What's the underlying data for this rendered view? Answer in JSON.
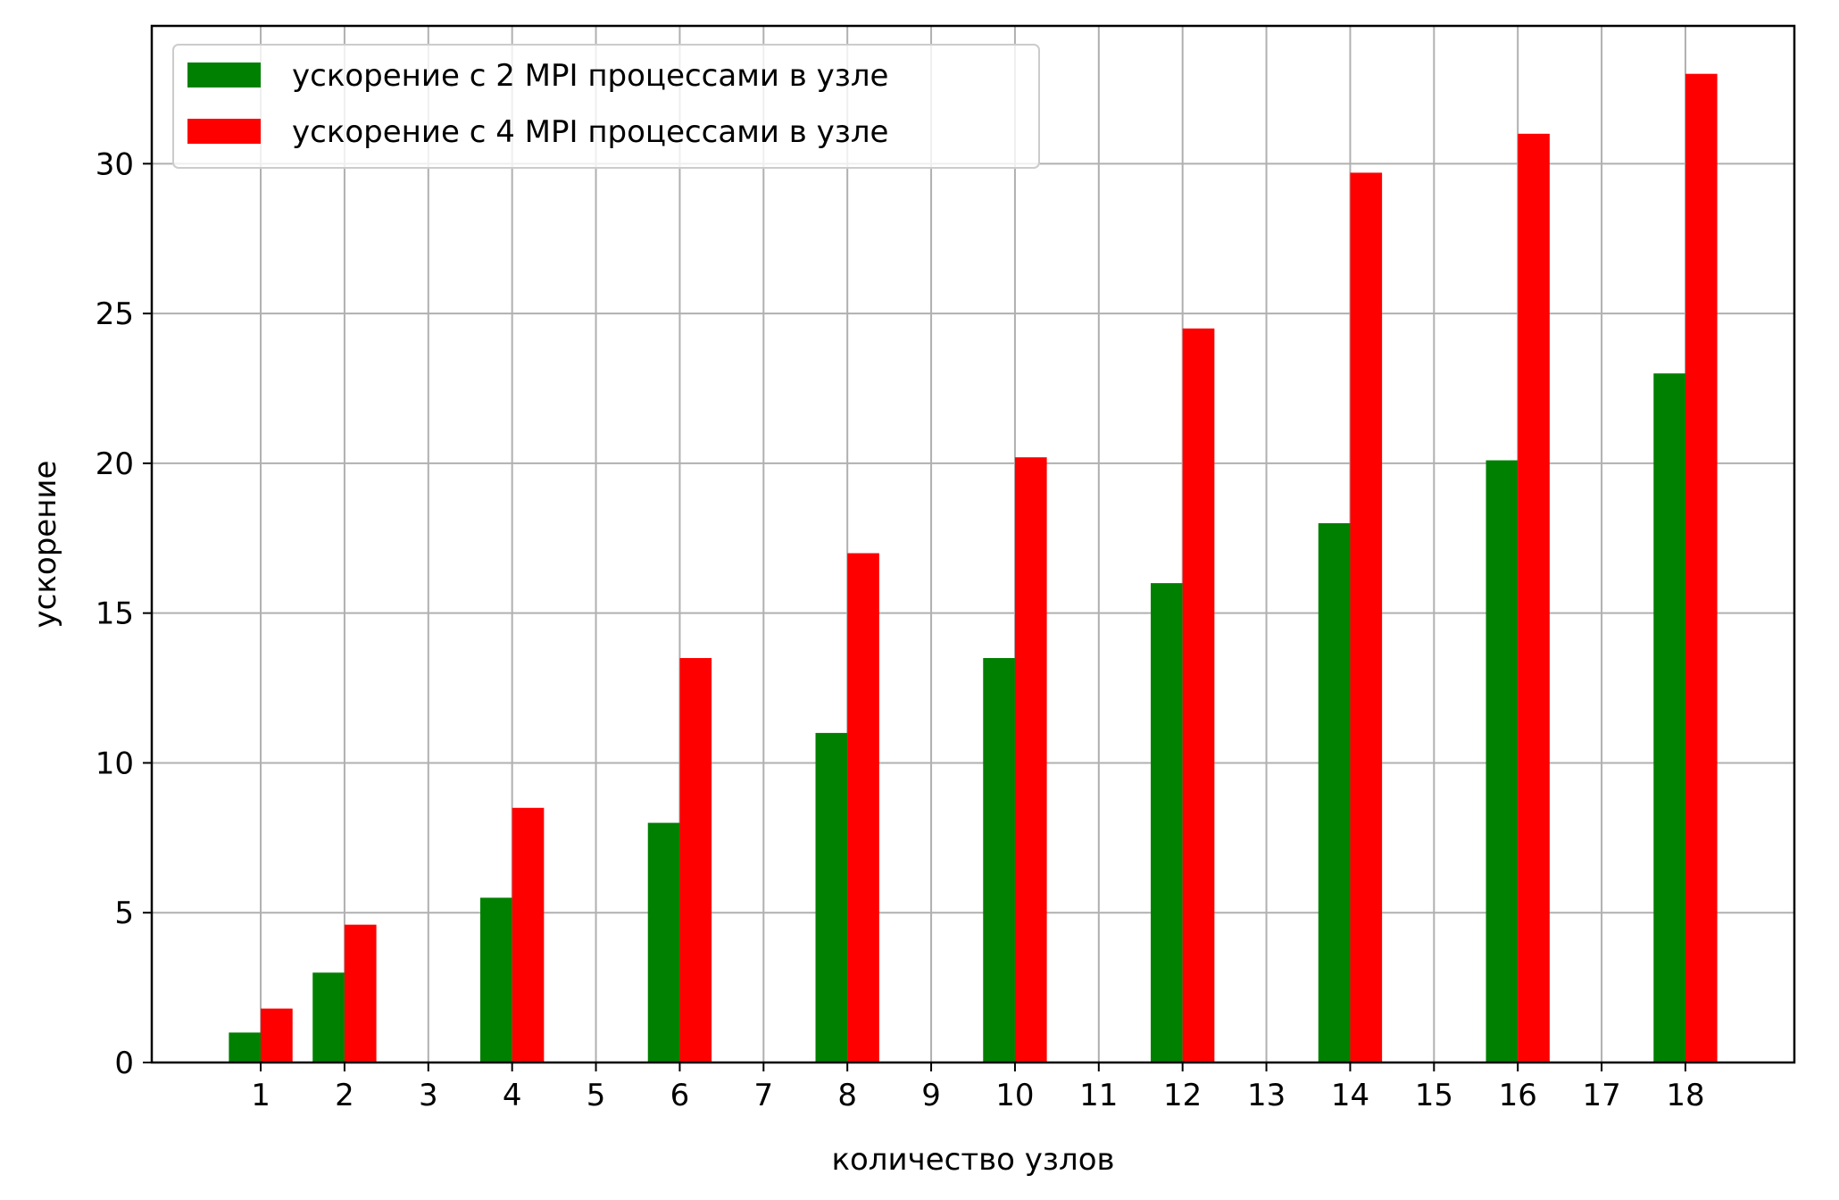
{
  "chart_data": {
    "type": "bar",
    "xlabel": "количество узлов",
    "ylabel": "ускорение",
    "x_ticks": [
      "1",
      "2",
      "3",
      "4",
      "5",
      "6",
      "7",
      "8",
      "9",
      "10",
      "11",
      "12",
      "13",
      "14",
      "15",
      "16",
      "17",
      "18"
    ],
    "y_ticks": [
      0,
      5,
      10,
      15,
      20,
      25,
      30
    ],
    "xlim": [
      -0.3,
      19.3
    ],
    "ylim": [
      0,
      34.6
    ],
    "grid": true,
    "legend_position": "upper-left",
    "series": [
      {
        "name": "ускорение с 2 MPI процессами в узле",
        "color": "#008000",
        "x": [
          1,
          2,
          4,
          6,
          8,
          10,
          12,
          14,
          16,
          18
        ],
        "values": [
          1,
          3,
          5.5,
          8,
          11,
          13.5,
          16,
          18,
          20.1,
          23
        ]
      },
      {
        "name": "ускорение с 4 MPI процессами в узле",
        "color": "#ff0000",
        "x": [
          1,
          2,
          4,
          6,
          8,
          10,
          12,
          14,
          16,
          18
        ],
        "values": [
          1.8,
          4.6,
          8.5,
          13.5,
          17,
          20.2,
          24.5,
          29.7,
          31,
          33
        ]
      }
    ]
  }
}
